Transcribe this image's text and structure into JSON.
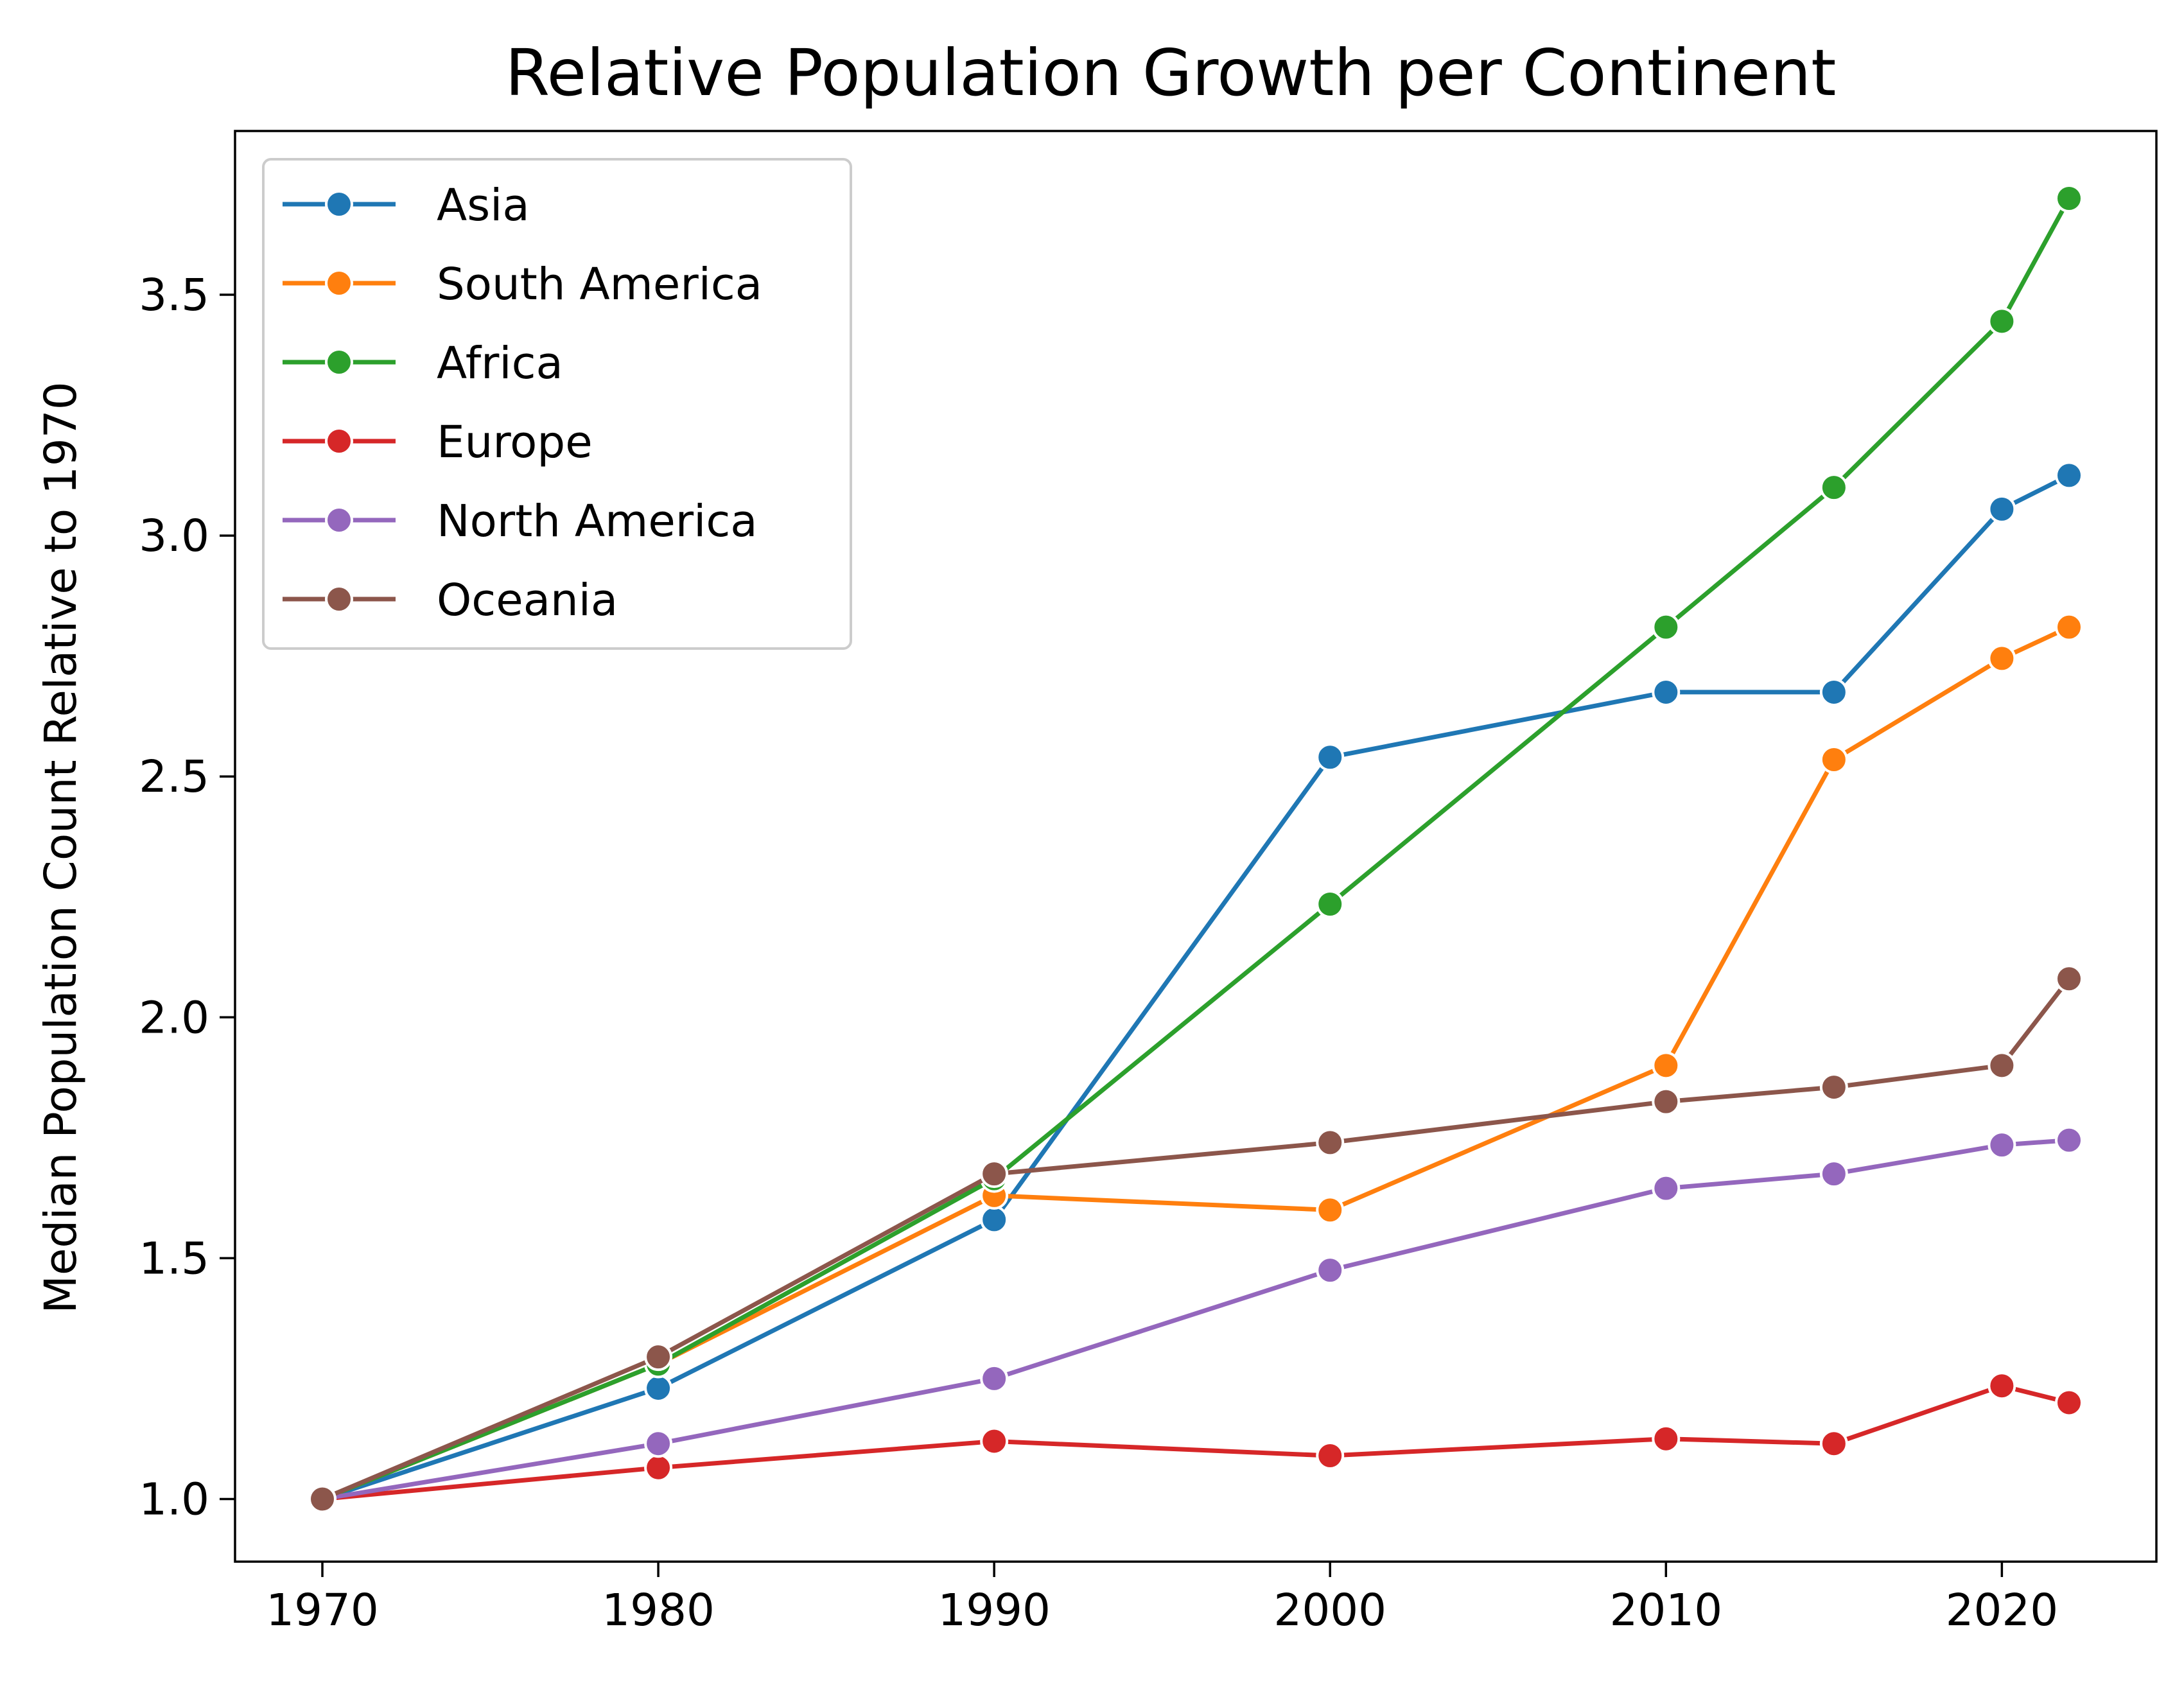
{
  "chart_data": {
    "type": "line",
    "title": "Relative Population Growth per Continent",
    "xlabel": "",
    "ylabel": "Median Population Count Relative to 1970",
    "x": [
      1970,
      1980,
      1990,
      2000,
      2010,
      2015,
      2020,
      2022
    ],
    "xticks": [
      1970,
      1980,
      1990,
      2000,
      2010,
      2020
    ],
    "yticks": [
      1.0,
      1.5,
      2.0,
      2.5,
      3.0,
      3.5
    ],
    "ytick_labels": [
      "1.0",
      "1.5",
      "2.0",
      "2.5",
      "3.0",
      "3.5"
    ],
    "xlim": [
      1967.4,
      2024.6
    ],
    "ylim": [
      0.87,
      3.84
    ],
    "grid": false,
    "legend_position": "top-left",
    "series": [
      {
        "name": "Asia",
        "color": "#1f77b4",
        "values": [
          1.0,
          1.23,
          1.58,
          2.54,
          2.675,
          2.675,
          3.055,
          3.125
        ]
      },
      {
        "name": "South America",
        "color": "#ff7f0e",
        "values": [
          1.0,
          1.28,
          1.63,
          1.6,
          1.9,
          2.535,
          2.745,
          2.81
        ]
      },
      {
        "name": "Africa",
        "color": "#2ca02c",
        "values": [
          1.0,
          1.28,
          1.665,
          2.235,
          2.81,
          3.1,
          3.445,
          3.7
        ]
      },
      {
        "name": "Europe",
        "color": "#d62728",
        "values": [
          1.0,
          1.065,
          1.12,
          1.09,
          1.125,
          1.115,
          1.235,
          1.2
        ]
      },
      {
        "name": "North America",
        "color": "#9467bd",
        "values": [
          1.0,
          1.115,
          1.25,
          1.475,
          1.645,
          1.675,
          1.735,
          1.745
        ]
      },
      {
        "name": "Oceania",
        "color": "#8c564b",
        "values": [
          1.0,
          1.295,
          1.675,
          1.74,
          1.825,
          1.855,
          1.9,
          2.08
        ]
      }
    ]
  }
}
